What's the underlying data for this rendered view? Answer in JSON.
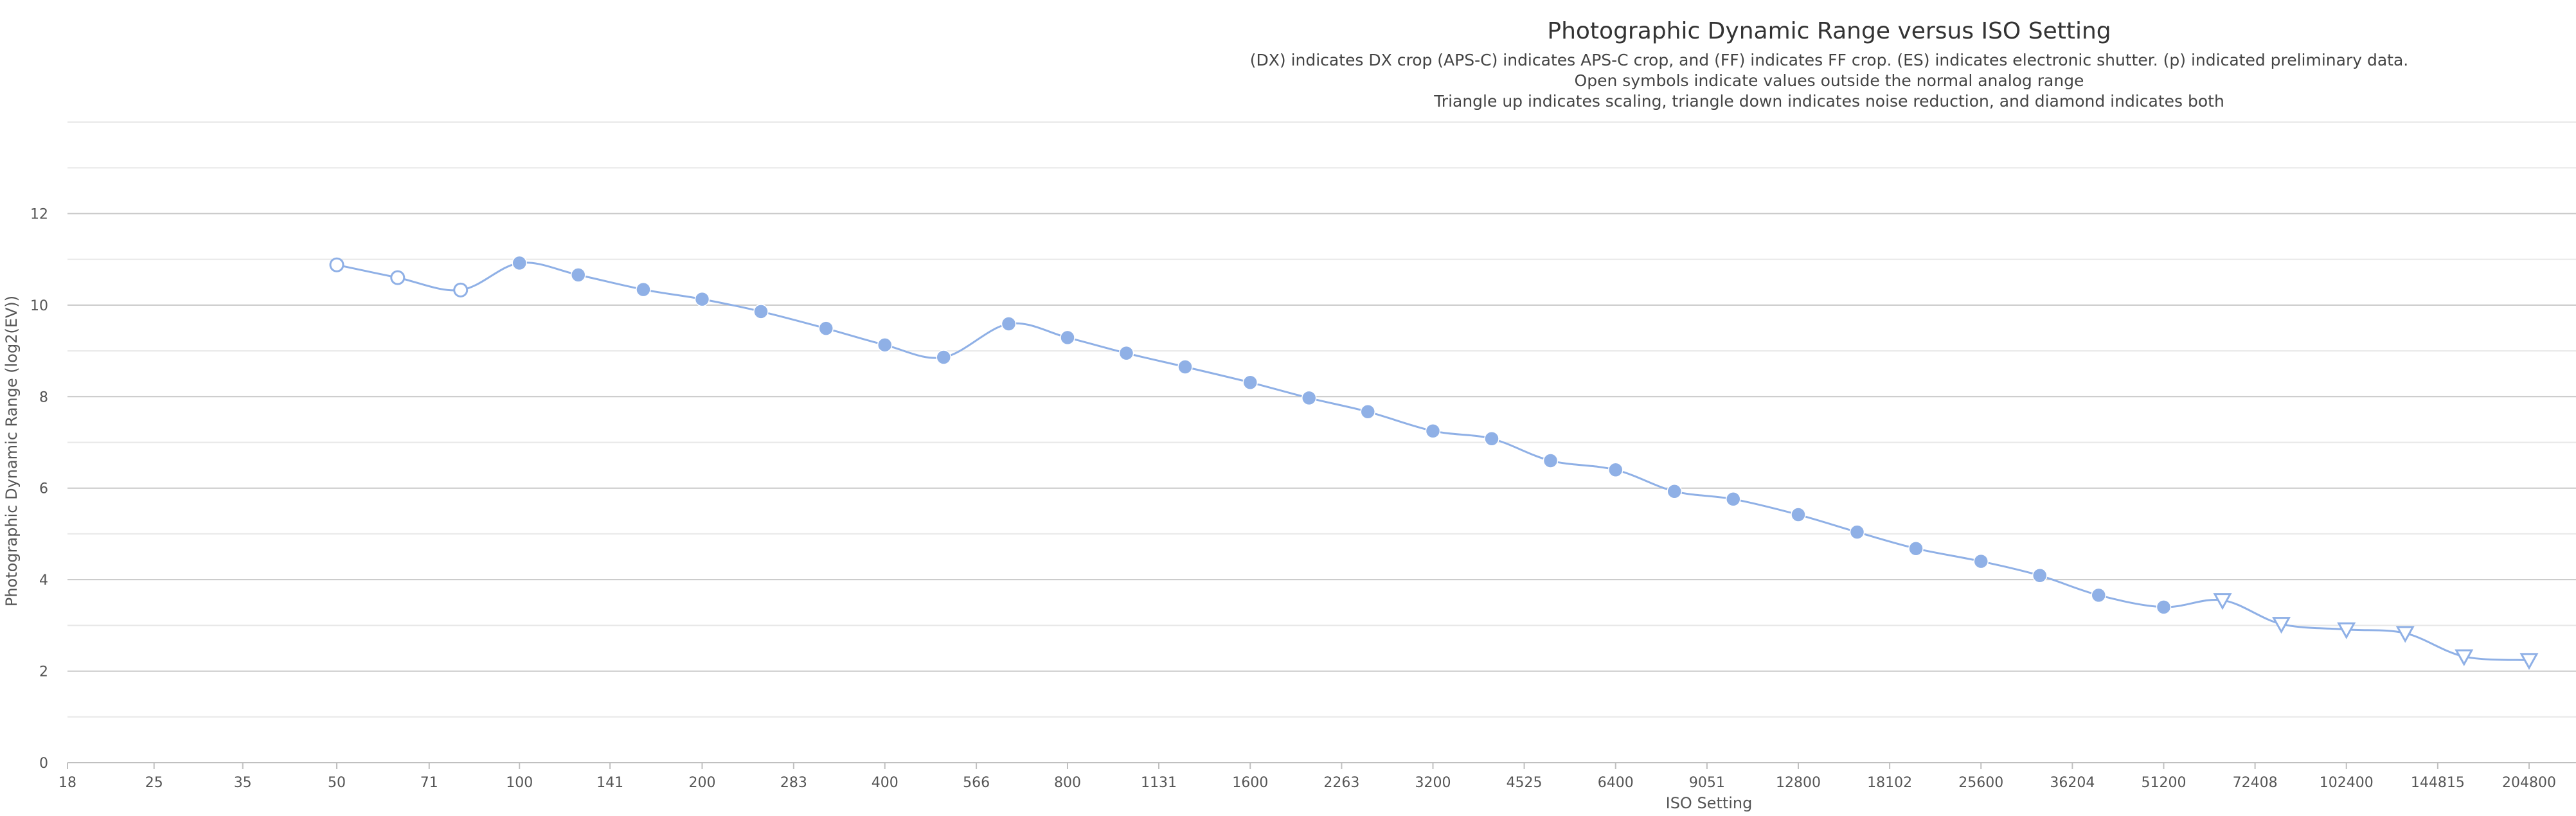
{
  "chart_data": {
    "type": "line",
    "title": "Photographic Dynamic Range versus ISO Setting",
    "subtitles": [
      "(DX) indicates DX crop (APS-C) indicates APS-C crop, and (FF) indicates FF crop. (ES) indicates electronic shutter. (p) indicated preliminary data.",
      "Open symbols indicate values outside the normal analog range",
      "Triangle up indicates scaling, triangle down indicates noise reduction, and diamond indicates both"
    ],
    "xlabel": "ISO Setting",
    "ylabel": "Photographic Dynamic Range (log2(EV))",
    "x_scale": "log2",
    "x_ticks": [
      18,
      25,
      35,
      50,
      71,
      100,
      141,
      200,
      283,
      400,
      566,
      800,
      1131,
      1600,
      2263,
      3200,
      4525,
      6400,
      9051,
      12800,
      18102,
      25600,
      36204,
      51200,
      72408,
      102400,
      144815,
      204800
    ],
    "ylim": [
      0,
      14
    ],
    "y_ticks": [
      0,
      2,
      4,
      6,
      8,
      10,
      12
    ],
    "grid": true,
    "legend": "none",
    "series_color": "#8fb0e6",
    "series": [
      {
        "points": [
          {
            "x": 50,
            "y": 10.88,
            "marker": "open-circle"
          },
          {
            "x": 63,
            "y": 10.6,
            "marker": "open-circle"
          },
          {
            "x": 80,
            "y": 10.33,
            "marker": "open-circle"
          },
          {
            "x": 100,
            "y": 10.92,
            "marker": "circle"
          },
          {
            "x": 125,
            "y": 10.66,
            "marker": "circle"
          },
          {
            "x": 160,
            "y": 10.34,
            "marker": "circle"
          },
          {
            "x": 200,
            "y": 10.13,
            "marker": "circle"
          },
          {
            "x": 250,
            "y": 9.86,
            "marker": "circle"
          },
          {
            "x": 320,
            "y": 9.49,
            "marker": "circle"
          },
          {
            "x": 400,
            "y": 9.13,
            "marker": "circle"
          },
          {
            "x": 500,
            "y": 8.86,
            "marker": "circle"
          },
          {
            "x": 640,
            "y": 9.59,
            "marker": "circle"
          },
          {
            "x": 800,
            "y": 9.29,
            "marker": "circle"
          },
          {
            "x": 1000,
            "y": 8.95,
            "marker": "circle"
          },
          {
            "x": 1250,
            "y": 8.65,
            "marker": "circle"
          },
          {
            "x": 1600,
            "y": 8.31,
            "marker": "circle"
          },
          {
            "x": 2000,
            "y": 7.97,
            "marker": "circle"
          },
          {
            "x": 2500,
            "y": 7.67,
            "marker": "circle"
          },
          {
            "x": 3200,
            "y": 7.25,
            "marker": "circle"
          },
          {
            "x": 4000,
            "y": 7.08,
            "marker": "circle"
          },
          {
            "x": 5000,
            "y": 6.6,
            "marker": "circle"
          },
          {
            "x": 6400,
            "y": 6.4,
            "marker": "circle"
          },
          {
            "x": 8000,
            "y": 5.93,
            "marker": "circle"
          },
          {
            "x": 10000,
            "y": 5.76,
            "marker": "circle"
          },
          {
            "x": 12800,
            "y": 5.42,
            "marker": "circle"
          },
          {
            "x": 16000,
            "y": 5.04,
            "marker": "circle"
          },
          {
            "x": 20000,
            "y": 4.68,
            "marker": "circle"
          },
          {
            "x": 25600,
            "y": 4.4,
            "marker": "circle"
          },
          {
            "x": 32000,
            "y": 4.09,
            "marker": "circle"
          },
          {
            "x": 40000,
            "y": 3.66,
            "marker": "circle"
          },
          {
            "x": 51200,
            "y": 3.4,
            "marker": "circle"
          },
          {
            "x": 64000,
            "y": 3.55,
            "marker": "open-triangle-down"
          },
          {
            "x": 80000,
            "y": 3.03,
            "marker": "open-triangle-down"
          },
          {
            "x": 102400,
            "y": 2.91,
            "marker": "open-triangle-down"
          },
          {
            "x": 128000,
            "y": 2.83,
            "marker": "open-triangle-down"
          },
          {
            "x": 160000,
            "y": 2.32,
            "marker": "open-triangle-down"
          },
          {
            "x": 204800,
            "y": 2.24,
            "marker": "open-triangle-down"
          }
        ]
      }
    ]
  }
}
